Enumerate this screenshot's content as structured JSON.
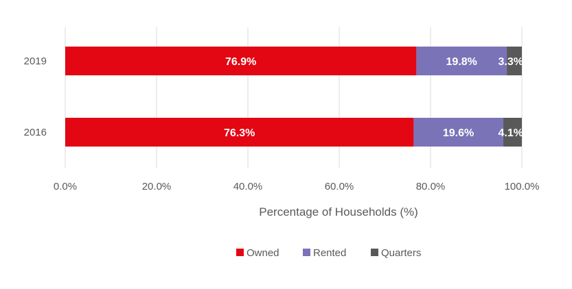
{
  "chart_data": {
    "type": "bar",
    "orientation": "horizontal",
    "stacked": true,
    "categories": [
      "2019",
      "2016"
    ],
    "series": [
      {
        "name": "Owned",
        "values": [
          76.9,
          76.3
        ],
        "labels": [
          "76.9%",
          "76.3%"
        ],
        "color": "#e30613"
      },
      {
        "name": "Rented",
        "values": [
          19.8,
          19.6
        ],
        "labels": [
          "19.8%",
          "19.6%"
        ],
        "color": "#7b73b8"
      },
      {
        "name": "Quarters",
        "values": [
          3.3,
          4.1
        ],
        "labels": [
          "3.3%",
          "4.1%"
        ],
        "color": "#595959"
      }
    ],
    "xlim": [
      0,
      100
    ],
    "xticks": [
      "0.0%",
      "20.0%",
      "40.0%",
      "60.0%",
      "80.0%",
      "100.0%"
    ],
    "xlabel": "Percentage of Households (%)",
    "ylabel": "",
    "title": "",
    "grid": "vertical",
    "legend": "bottom"
  }
}
